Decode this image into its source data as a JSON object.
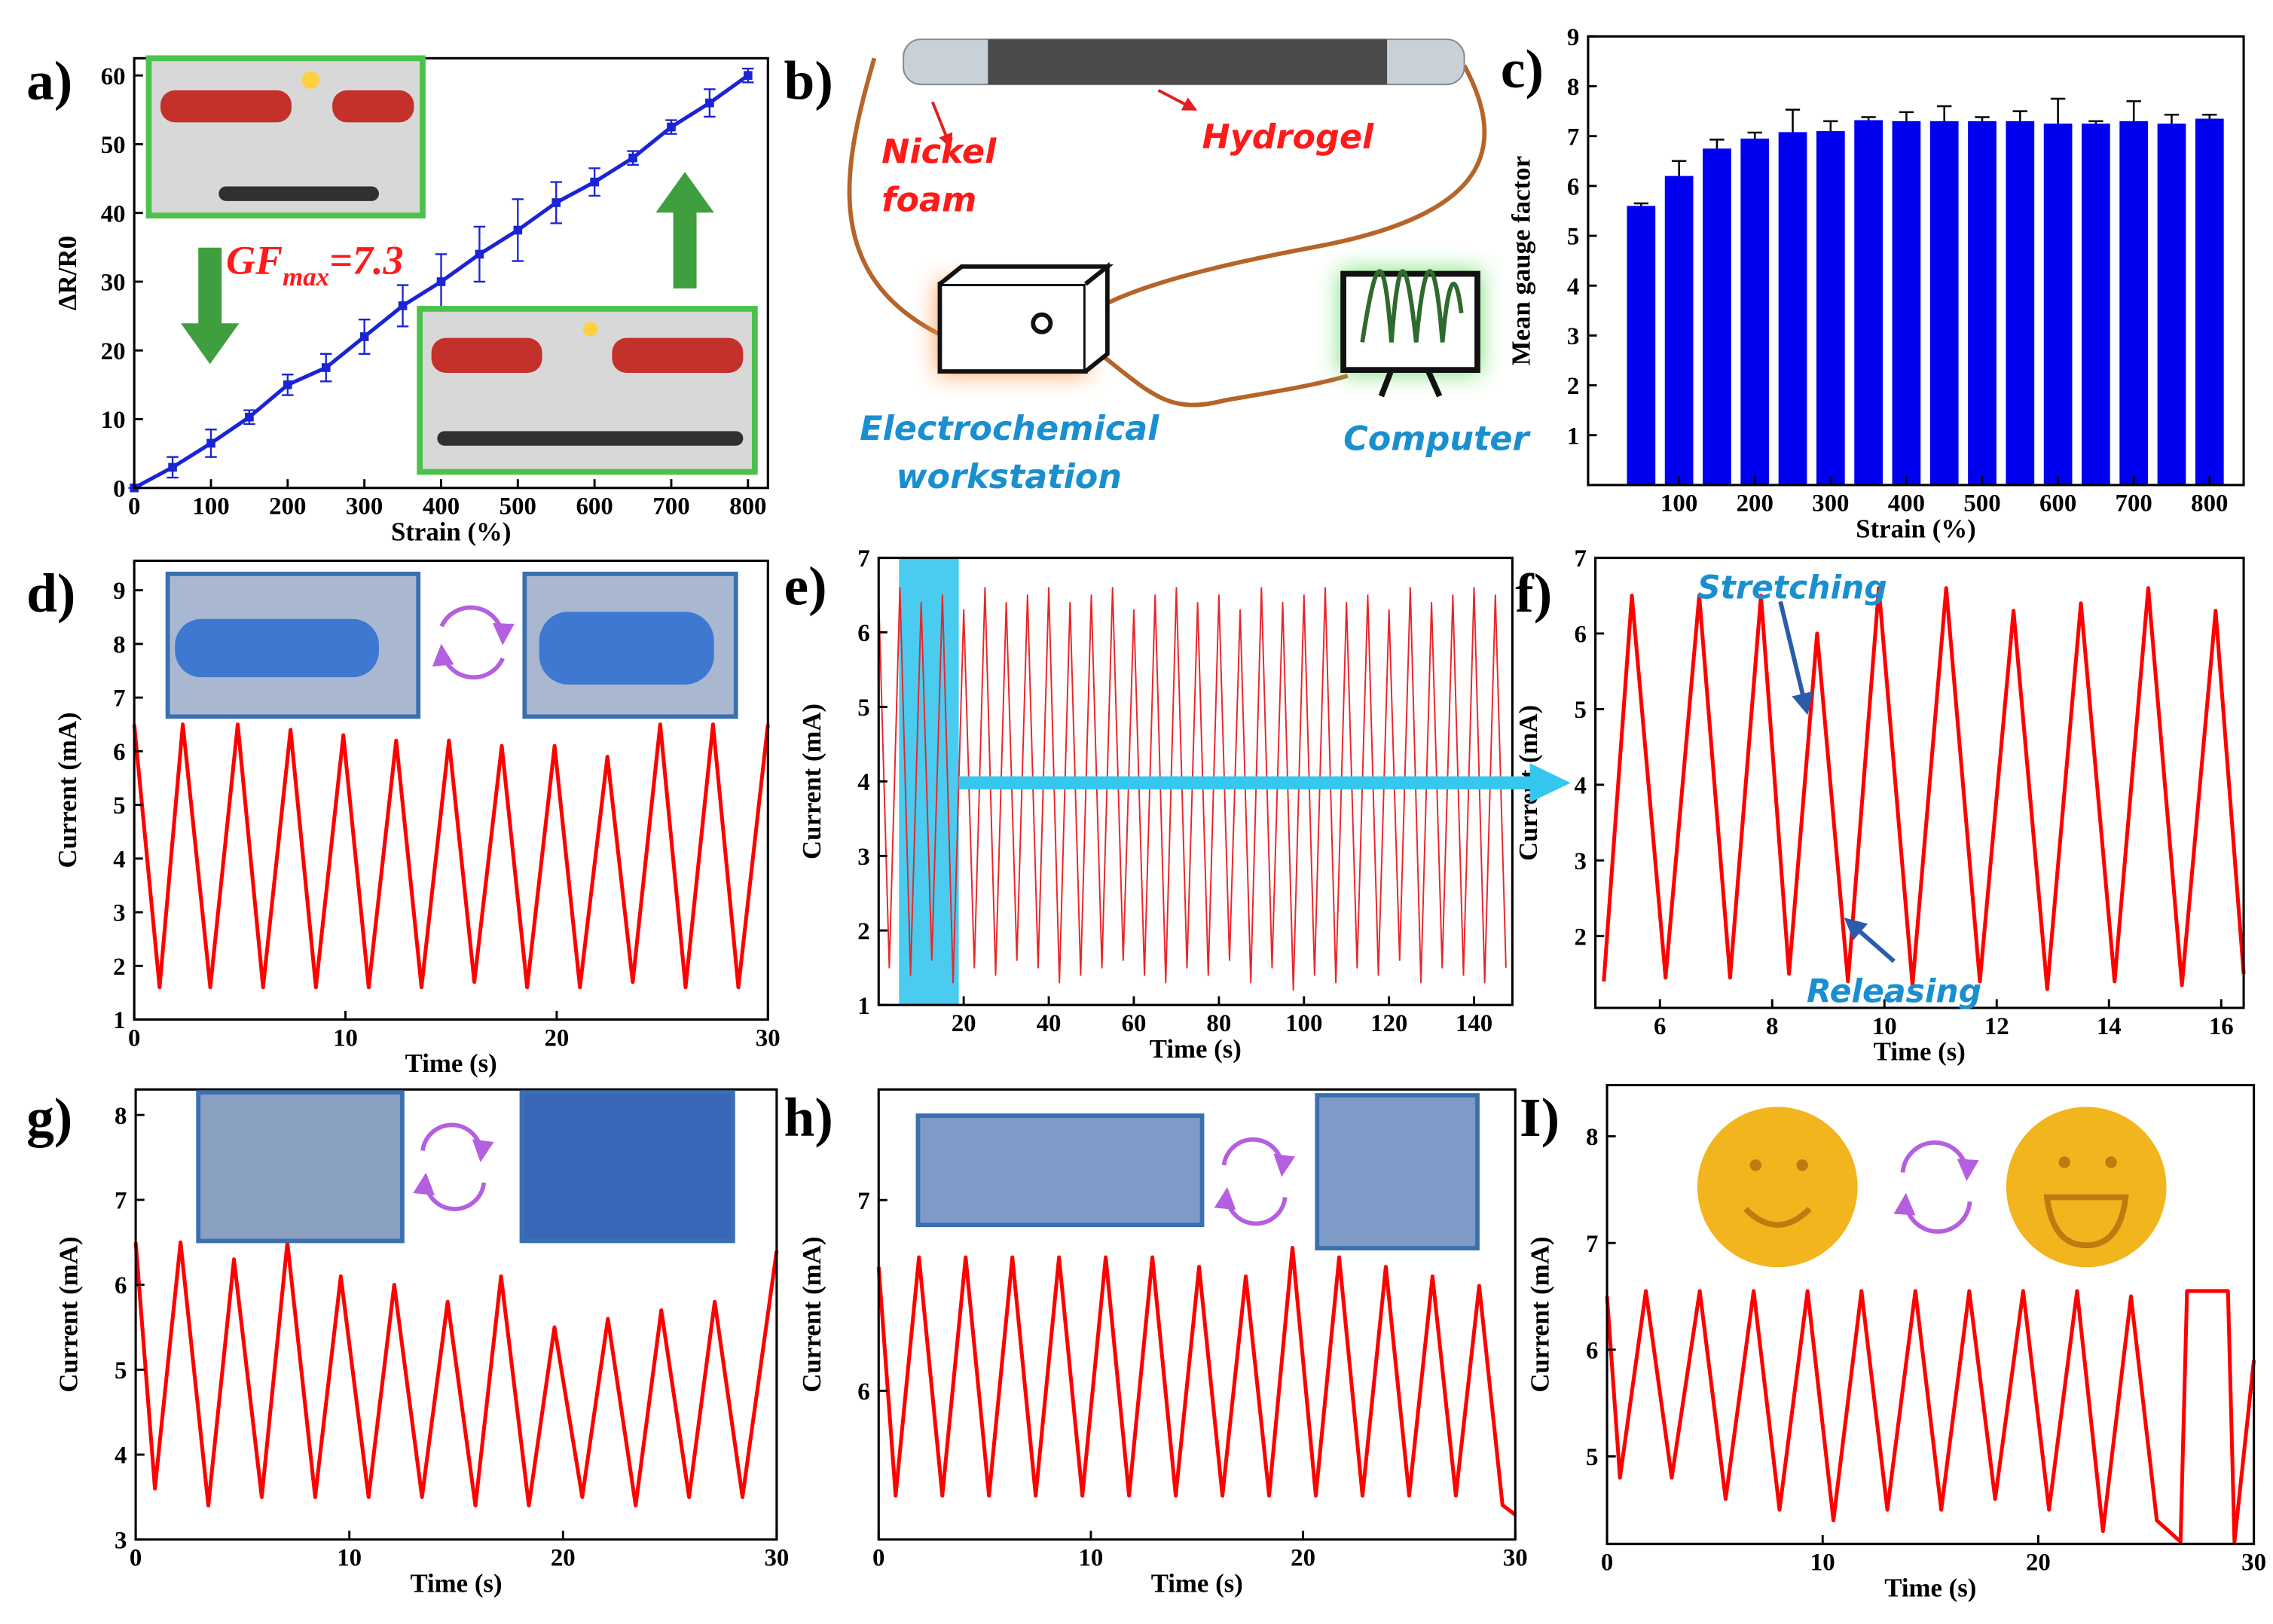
{
  "chart_data": [
    {
      "type": "line",
      "panel_label": "a)",
      "xlabel": "Strain (%)",
      "ylabel": "ΔR/R0",
      "color": "#1a23d6",
      "x": [
        0,
        50,
        100,
        150,
        200,
        250,
        300,
        350,
        400,
        450,
        500,
        550,
        600,
        650,
        700,
        750,
        800
      ],
      "values": [
        0,
        3,
        6.5,
        10.3,
        15,
        17.5,
        22,
        26.5,
        30,
        34,
        37.5,
        41.5,
        44.5,
        48,
        52.5,
        56,
        60
      ],
      "errors": [
        0,
        1.5,
        2,
        1,
        1.5,
        2,
        2.5,
        3,
        4,
        4,
        4.5,
        3,
        2,
        1,
        1,
        2,
        1
      ],
      "xlim": [
        0,
        826
      ],
      "ylim": [
        0,
        62.5
      ],
      "xticks": [
        0,
        100,
        200,
        300,
        400,
        500,
        600,
        700,
        800
      ],
      "yticks": [
        0,
        10,
        20,
        30,
        40,
        50,
        60
      ],
      "annotation": {
        "base": "GF",
        "sub": "max",
        "rest": "=7.3"
      }
    },
    {
      "type": "bar",
      "panel_label": "c)",
      "xlabel": "Strain (%)",
      "ylabel": "Mean gauge factor",
      "color": "#0000f0",
      "x": [
        50,
        100,
        150,
        200,
        250,
        300,
        350,
        400,
        450,
        500,
        550,
        600,
        650,
        700,
        750,
        800
      ],
      "values": [
        5.6,
        6.2,
        6.75,
        6.95,
        7.08,
        7.1,
        7.32,
        7.3,
        7.3,
        7.3,
        7.3,
        7.25,
        7.25,
        7.3,
        7.25,
        7.35
      ],
      "errors": [
        0.05,
        0.3,
        0.18,
        0.12,
        0.45,
        0.2,
        0.06,
        0.18,
        0.3,
        0.08,
        0.2,
        0.5,
        0.05,
        0.4,
        0.18,
        0.08
      ],
      "xlim": [
        -20,
        845
      ],
      "ylim": [
        0,
        9
      ],
      "xticks": [
        100,
        200,
        300,
        400,
        500,
        600,
        700,
        800
      ],
      "yticks": [
        1,
        2,
        3,
        4,
        5,
        6,
        7,
        8,
        9
      ]
    },
    {
      "type": "line",
      "panel_label": "d)",
      "xlabel": "Time (s)",
      "ylabel": "Current (mA)",
      "color": "#ff0000",
      "x": [
        0,
        1.2,
        2.3,
        3.6,
        4.9,
        6.1,
        7.4,
        8.6,
        9.9,
        11.1,
        12.4,
        13.6,
        14.9,
        16.1,
        17.4,
        18.6,
        19.9,
        21.1,
        22.4,
        23.6,
        24.9,
        26.1,
        27.4,
        28.6,
        30
      ],
      "values": [
        6.5,
        1.6,
        6.5,
        1.6,
        6.5,
        1.6,
        6.4,
        1.6,
        6.3,
        1.6,
        6.2,
        1.6,
        6.2,
        1.7,
        6.1,
        1.6,
        6.1,
        1.6,
        5.9,
        1.7,
        6.5,
        1.6,
        6.5,
        1.6,
        6.5
      ],
      "xlim": [
        0,
        30
      ],
      "ylim": [
        1,
        9.55
      ],
      "xticks": [
        0,
        10,
        20,
        30
      ],
      "yticks": [
        1,
        2,
        3,
        4,
        5,
        6,
        7,
        8,
        9
      ]
    },
    {
      "type": "line",
      "panel_label": "e)",
      "xlabel": "Time (s)",
      "ylabel": "Current (mA)",
      "color": "#e8262a",
      "x": [
        0,
        2.5,
        5,
        7.5,
        10,
        12.5,
        15,
        17.5,
        20,
        22.5,
        25,
        27.5,
        30,
        32.5,
        35,
        37.5,
        40,
        42.5,
        45,
        47.5,
        50,
        52.5,
        55,
        57.5,
        60,
        62.5,
        65,
        67.5,
        70,
        72.5,
        75,
        77.5,
        80,
        82.5,
        85,
        87.5,
        90,
        92.5,
        95,
        97.5,
        100,
        102.5,
        105,
        107.5,
        110,
        112.5,
        115,
        117.5,
        120,
        122.5,
        125,
        127.5,
        130,
        132.5,
        135,
        137.5,
        140,
        142.5,
        145,
        147.5
      ],
      "values": [
        6.5,
        1.5,
        6.6,
        1.4,
        6.4,
        1.6,
        6.5,
        1.3,
        6.3,
        1.5,
        6.6,
        1.4,
        6.4,
        1.6,
        6.5,
        1.5,
        6.6,
        1.3,
        6.4,
        1.4,
        6.5,
        1.5,
        6.6,
        1.6,
        6.3,
        1.4,
        6.5,
        1.3,
        6.6,
        1.5,
        6.4,
        1.4,
        6.5,
        1.6,
        6.3,
        1.3,
        6.6,
        1.5,
        6.4,
        1.2,
        6.5,
        1.4,
        6.6,
        1.3,
        6.4,
        1.5,
        6.5,
        1.4,
        6.3,
        1.6,
        6.6,
        1.3,
        6.4,
        1.5,
        6.5,
        1.4,
        6.6,
        1.3,
        6.5,
        1.5
      ],
      "xlim": [
        0,
        149
      ],
      "ylim": [
        1,
        7
      ],
      "xticks": [
        20,
        40,
        60,
        80,
        100,
        120,
        140
      ],
      "yticks": [
        1,
        2,
        3,
        4,
        5,
        6,
        7
      ]
    },
    {
      "type": "line",
      "panel_label": "f)",
      "xlabel": "Time (s)",
      "ylabel": "Current (mA)",
      "color": "#ff0000",
      "x": [
        5.0,
        5.5,
        6.1,
        6.7,
        7.25,
        7.8,
        8.3,
        8.8,
        9.35,
        9.9,
        10.5,
        11.1,
        11.7,
        12.3,
        12.9,
        13.5,
        14.1,
        14.7,
        15.3,
        15.9,
        16.4
      ],
      "values": [
        1.4,
        6.5,
        1.45,
        6.5,
        1.45,
        6.5,
        1.5,
        6.0,
        1.4,
        6.6,
        1.35,
        6.6,
        1.4,
        6.3,
        1.3,
        6.4,
        1.4,
        6.6,
        1.35,
        6.3,
        1.5
      ],
      "xlim": [
        4.85,
        16.4
      ],
      "ylim": [
        1.05,
        7
      ],
      "xticks": [
        6,
        8,
        10,
        12,
        14,
        16
      ],
      "yticks": [
        2,
        3,
        4,
        5,
        6,
        7
      ],
      "annotations": [
        "Stretching",
        "Releasing"
      ]
    },
    {
      "type": "line",
      "panel_label": "g)",
      "xlabel": "Time (s)",
      "ylabel": "Current (mA)",
      "color": "#ff0000",
      "x": [
        0,
        0.9,
        2.1,
        3.4,
        4.6,
        5.9,
        7.1,
        8.4,
        9.6,
        10.9,
        12.1,
        13.4,
        14.6,
        15.9,
        17.1,
        18.4,
        19.6,
        20.9,
        22.1,
        23.4,
        24.6,
        25.9,
        27.1,
        28.4,
        30
      ],
      "values": [
        6.5,
        3.6,
        6.5,
        3.4,
        6.3,
        3.5,
        6.5,
        3.5,
        6.1,
        3.5,
        6.0,
        3.5,
        5.8,
        3.4,
        6.1,
        3.4,
        5.5,
        3.5,
        5.6,
        3.4,
        5.7,
        3.5,
        5.8,
        3.5,
        6.4
      ],
      "xlim": [
        0,
        30
      ],
      "ylim": [
        3,
        8.3
      ],
      "xticks": [
        0,
        10,
        20,
        30
      ],
      "yticks": [
        3,
        4,
        5,
        6,
        7,
        8
      ]
    },
    {
      "type": "line",
      "panel_label": "h)",
      "xlabel": "Time (s)",
      "ylabel": "Current (mA)",
      "color": "#ff0000",
      "x": [
        0,
        0.8,
        1.9,
        3.0,
        4.1,
        5.2,
        6.3,
        7.4,
        8.5,
        9.6,
        10.7,
        11.8,
        12.9,
        14.0,
        15.1,
        16.2,
        17.3,
        18.4,
        19.5,
        20.6,
        21.7,
        22.8,
        23.9,
        25.0,
        26.1,
        27.2,
        28.3,
        29.4,
        30
      ],
      "values": [
        6.65,
        5.45,
        6.7,
        5.45,
        6.7,
        5.45,
        6.7,
        5.45,
        6.7,
        5.45,
        6.7,
        5.45,
        6.7,
        5.45,
        6.65,
        5.45,
        6.6,
        5.45,
        6.75,
        5.45,
        6.7,
        5.45,
        6.65,
        5.45,
        6.6,
        5.45,
        6.55,
        5.4,
        5.35
      ],
      "xlim": [
        0,
        30
      ],
      "ylim": [
        5.22,
        7.58
      ],
      "xticks": [
        0,
        10,
        20,
        30
      ],
      "yticks": [
        6,
        7
      ]
    },
    {
      "type": "line",
      "panel_label": "I)",
      "xlabel": "Time (s)",
      "ylabel": "Current (mA)",
      "color": "#ff0000",
      "x": [
        0,
        0.6,
        1.8,
        3.0,
        4.3,
        5.5,
        6.8,
        8.0,
        9.3,
        10.5,
        11.8,
        13.0,
        14.3,
        15.5,
        16.8,
        18.0,
        19.3,
        20.5,
        21.8,
        23.0,
        24.3,
        25.5,
        26.6,
        26.9,
        28.8,
        29.1,
        30
      ],
      "values": [
        6.5,
        4.8,
        6.55,
        4.8,
        6.55,
        4.6,
        6.55,
        4.5,
        6.55,
        4.4,
        6.55,
        4.5,
        6.55,
        4.5,
        6.55,
        4.6,
        6.55,
        4.5,
        6.55,
        4.3,
        6.5,
        4.4,
        4.2,
        6.55,
        6.55,
        4.2,
        5.9
      ],
      "xlim": [
        0,
        30
      ],
      "ylim": [
        4.18,
        8.48
      ],
      "xticks": [
        0,
        10,
        20,
        30
      ],
      "yticks": [
        5,
        6,
        7,
        8
      ]
    }
  ],
  "diagram": {
    "panel_label": "b)",
    "nickel_foam": [
      "Nickel",
      "foam"
    ],
    "hydrogel": "Hydrogel",
    "workstation": [
      "Electrochemical",
      "workstation"
    ],
    "computer": "Computer"
  }
}
